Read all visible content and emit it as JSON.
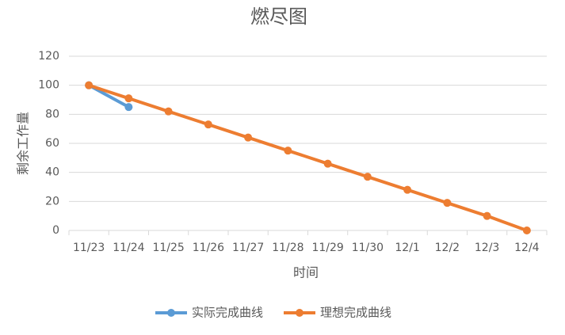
{
  "chart_data": {
    "type": "line",
    "title": "燃尽图",
    "xlabel": "时间",
    "ylabel": "剩余工作量",
    "categories": [
      "11/23",
      "11/24",
      "11/25",
      "11/26",
      "11/27",
      "11/28",
      "11/29",
      "11/30",
      "12/1",
      "12/2",
      "12/3",
      "12/4"
    ],
    "series": [
      {
        "name": "实际完成曲线",
        "color": "#5b9bd5",
        "values": [
          100,
          85,
          null,
          null,
          null,
          null,
          null,
          null,
          null,
          null,
          null,
          null
        ]
      },
      {
        "name": "理想完成曲线",
        "color": "#ed7d31",
        "values": [
          100,
          91,
          82,
          73,
          64,
          55,
          46,
          37,
          28,
          19,
          10,
          0
        ]
      }
    ],
    "ylim": [
      0,
      120
    ],
    "yticks": [
      0,
      20,
      40,
      60,
      80,
      100,
      120
    ],
    "grid": true,
    "legend": "bottom"
  }
}
